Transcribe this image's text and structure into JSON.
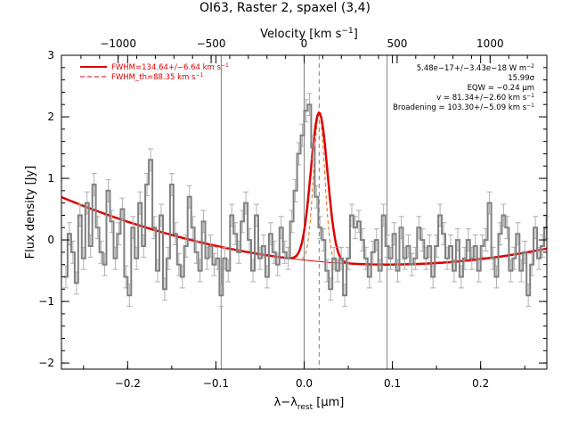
{
  "chart_data": {
    "type": "line",
    "title": "OI63, Raster 2, spaxel (3,4)",
    "xlabel": "λ−λ_rest [μm]",
    "ylabel": "Flux density [Jy]",
    "top_xlabel": "Velocity [km s^-1]",
    "xlim": [
      -0.275,
      0.275
    ],
    "ylim": [
      -2.1,
      3.0
    ],
    "xticks": [
      -0.2,
      -0.1,
      0.0,
      0.1,
      0.2
    ],
    "xtick_labels": [
      "−0.2",
      "−0.1",
      "0.0",
      "0.1",
      "0.2"
    ],
    "yticks": [
      -2,
      -1,
      0,
      1,
      2,
      3
    ],
    "ytick_labels": [
      "−2",
      "−1",
      "0",
      "1",
      "2",
      "3"
    ],
    "top_ticks_velocity": [
      -1000,
      -500,
      0,
      500,
      1000
    ],
    "top_tick_labels": [
      "−1000",
      "−500",
      "0",
      "500",
      "1000"
    ],
    "vertical_lines": [
      -0.094,
      0.0,
      0.094
    ],
    "line_center_marker": 0.017,
    "legend": {
      "placement": "top-left",
      "entries": [
        {
          "label": "FWHM=134.64+/−6.64 km s^-1",
          "style": "solid",
          "color": "#dd0000"
        },
        {
          "label": "FWHM_th=88.35 km s^-1",
          "style": "dashed",
          "color": "#dd0000"
        }
      ]
    },
    "annotations": [
      "5.48e−17+/−3.43e−18 W m^-2",
      "15.99σ",
      "EQW = −0.24 μm",
      "v = 81.34+/−2.60 km s^-1",
      "Broadening = 103.30+/−5.09 km s^-1"
    ],
    "series": [
      {
        "kind": "data-step",
        "color": "#808080",
        "x": [
          -0.27,
          -0.266,
          -0.262,
          -0.258,
          -0.254,
          -0.25,
          -0.246,
          -0.242,
          -0.238,
          -0.234,
          -0.23,
          -0.226,
          -0.222,
          -0.218,
          -0.214,
          -0.21,
          -0.206,
          -0.202,
          -0.198,
          -0.194,
          -0.19,
          -0.186,
          -0.182,
          -0.178,
          -0.174,
          -0.17,
          -0.166,
          -0.162,
          -0.158,
          -0.154,
          -0.15,
          -0.146,
          -0.142,
          -0.138,
          -0.134,
          -0.13,
          -0.126,
          -0.122,
          -0.118,
          -0.114,
          -0.11,
          -0.106,
          -0.102,
          -0.098,
          -0.094,
          -0.09,
          -0.086,
          -0.082,
          -0.078,
          -0.074,
          -0.07,
          -0.066,
          -0.062,
          -0.058,
          -0.054,
          -0.05,
          -0.046,
          -0.042,
          -0.038,
          -0.034,
          -0.03,
          -0.026,
          -0.022,
          -0.018,
          -0.014,
          -0.01,
          -0.006,
          -0.002,
          0.002,
          0.006,
          0.01,
          0.014,
          0.018,
          0.022,
          0.026,
          0.03,
          0.034,
          0.038,
          0.042,
          0.046,
          0.05,
          0.054,
          0.058,
          0.062,
          0.066,
          0.07,
          0.074,
          0.078,
          0.082,
          0.086,
          0.09,
          0.094,
          0.098,
          0.102,
          0.106,
          0.11,
          0.114,
          0.118,
          0.122,
          0.126,
          0.13,
          0.134,
          0.138,
          0.142,
          0.146,
          0.15,
          0.154,
          0.158,
          0.162,
          0.166,
          0.17,
          0.174,
          0.178,
          0.182,
          0.186,
          0.19,
          0.194,
          0.198,
          0.202,
          0.206,
          0.21,
          0.214,
          0.218,
          0.222,
          0.226,
          0.23,
          0.234,
          0.238,
          0.242,
          0.246,
          0.25,
          0.254,
          0.258,
          0.262,
          0.266,
          0.27,
          0.274
        ],
        "y": [
          -0.6,
          0.1,
          -0.2,
          -0.7,
          0.4,
          -0.3,
          0.6,
          -0.1,
          0.9,
          0.2,
          -0.2,
          -0.4,
          0.8,
          0.3,
          -0.3,
          0.1,
          0.5,
          -0.6,
          -0.9,
          0.2,
          -0.3,
          0.6,
          -0.1,
          0.9,
          1.3,
          0.2,
          -0.5,
          0.4,
          -0.8,
          -0.3,
          0.9,
          0.1,
          -0.4,
          -0.6,
          -0.1,
          0.7,
          0.2,
          -0.2,
          -0.5,
          0.3,
          -0.3,
          -0.1,
          -0.4,
          -0.3,
          -0.9,
          -0.3,
          -0.5,
          0.4,
          0.1,
          -0.2,
          0.3,
          0.6,
          0.0,
          -0.5,
          0.4,
          -0.3,
          -0.1,
          -0.6,
          0.1,
          -0.2,
          -0.4,
          0.2,
          -0.2,
          -0.3,
          0.3,
          0.8,
          1.4,
          1.7,
          2.1,
          2.2,
          1.5,
          0.7,
          0.2,
          0.0,
          -0.5,
          -0.8,
          -0.3,
          -0.5,
          -0.3,
          -0.9,
          -0.3,
          0.4,
          0.2,
          0.3,
          0.0,
          -0.3,
          -0.6,
          -0.2,
          0.0,
          -0.5,
          0.4,
          -0.1,
          -0.3,
          0.1,
          -0.5,
          0.2,
          -0.3,
          -0.1,
          -0.4,
          -0.3,
          0.2,
          0.0,
          -0.3,
          -0.1,
          -0.6,
          -0.1,
          0.4,
          0.1,
          -0.3,
          -0.1,
          -0.5,
          0.0,
          -0.6,
          -0.3,
          0.0,
          -0.3,
          -0.1,
          -0.5,
          -0.1,
          0.0,
          0.6,
          -0.3,
          -0.6,
          0.1,
          0.4,
          0.2,
          -0.5,
          -0.3,
          0.1,
          -0.5,
          -0.2,
          -0.9,
          -0.4,
          0.2,
          -0.3,
          -0.1,
          0.2
        ],
        "err": 0.18
      },
      {
        "kind": "fit-total",
        "color": "#dd0000",
        "continuum": {
          "a": -0.4,
          "b": 0.0,
          "c": 8.0,
          "center": 0.095
        },
        "gauss": {
          "amp": 2.42,
          "center": 0.017,
          "sigma": 0.0094
        }
      },
      {
        "kind": "fit-thermal",
        "color": "#ee6600",
        "gauss": {
          "amp": 2.42,
          "center": 0.017,
          "sigma": 0.0062
        }
      }
    ]
  }
}
